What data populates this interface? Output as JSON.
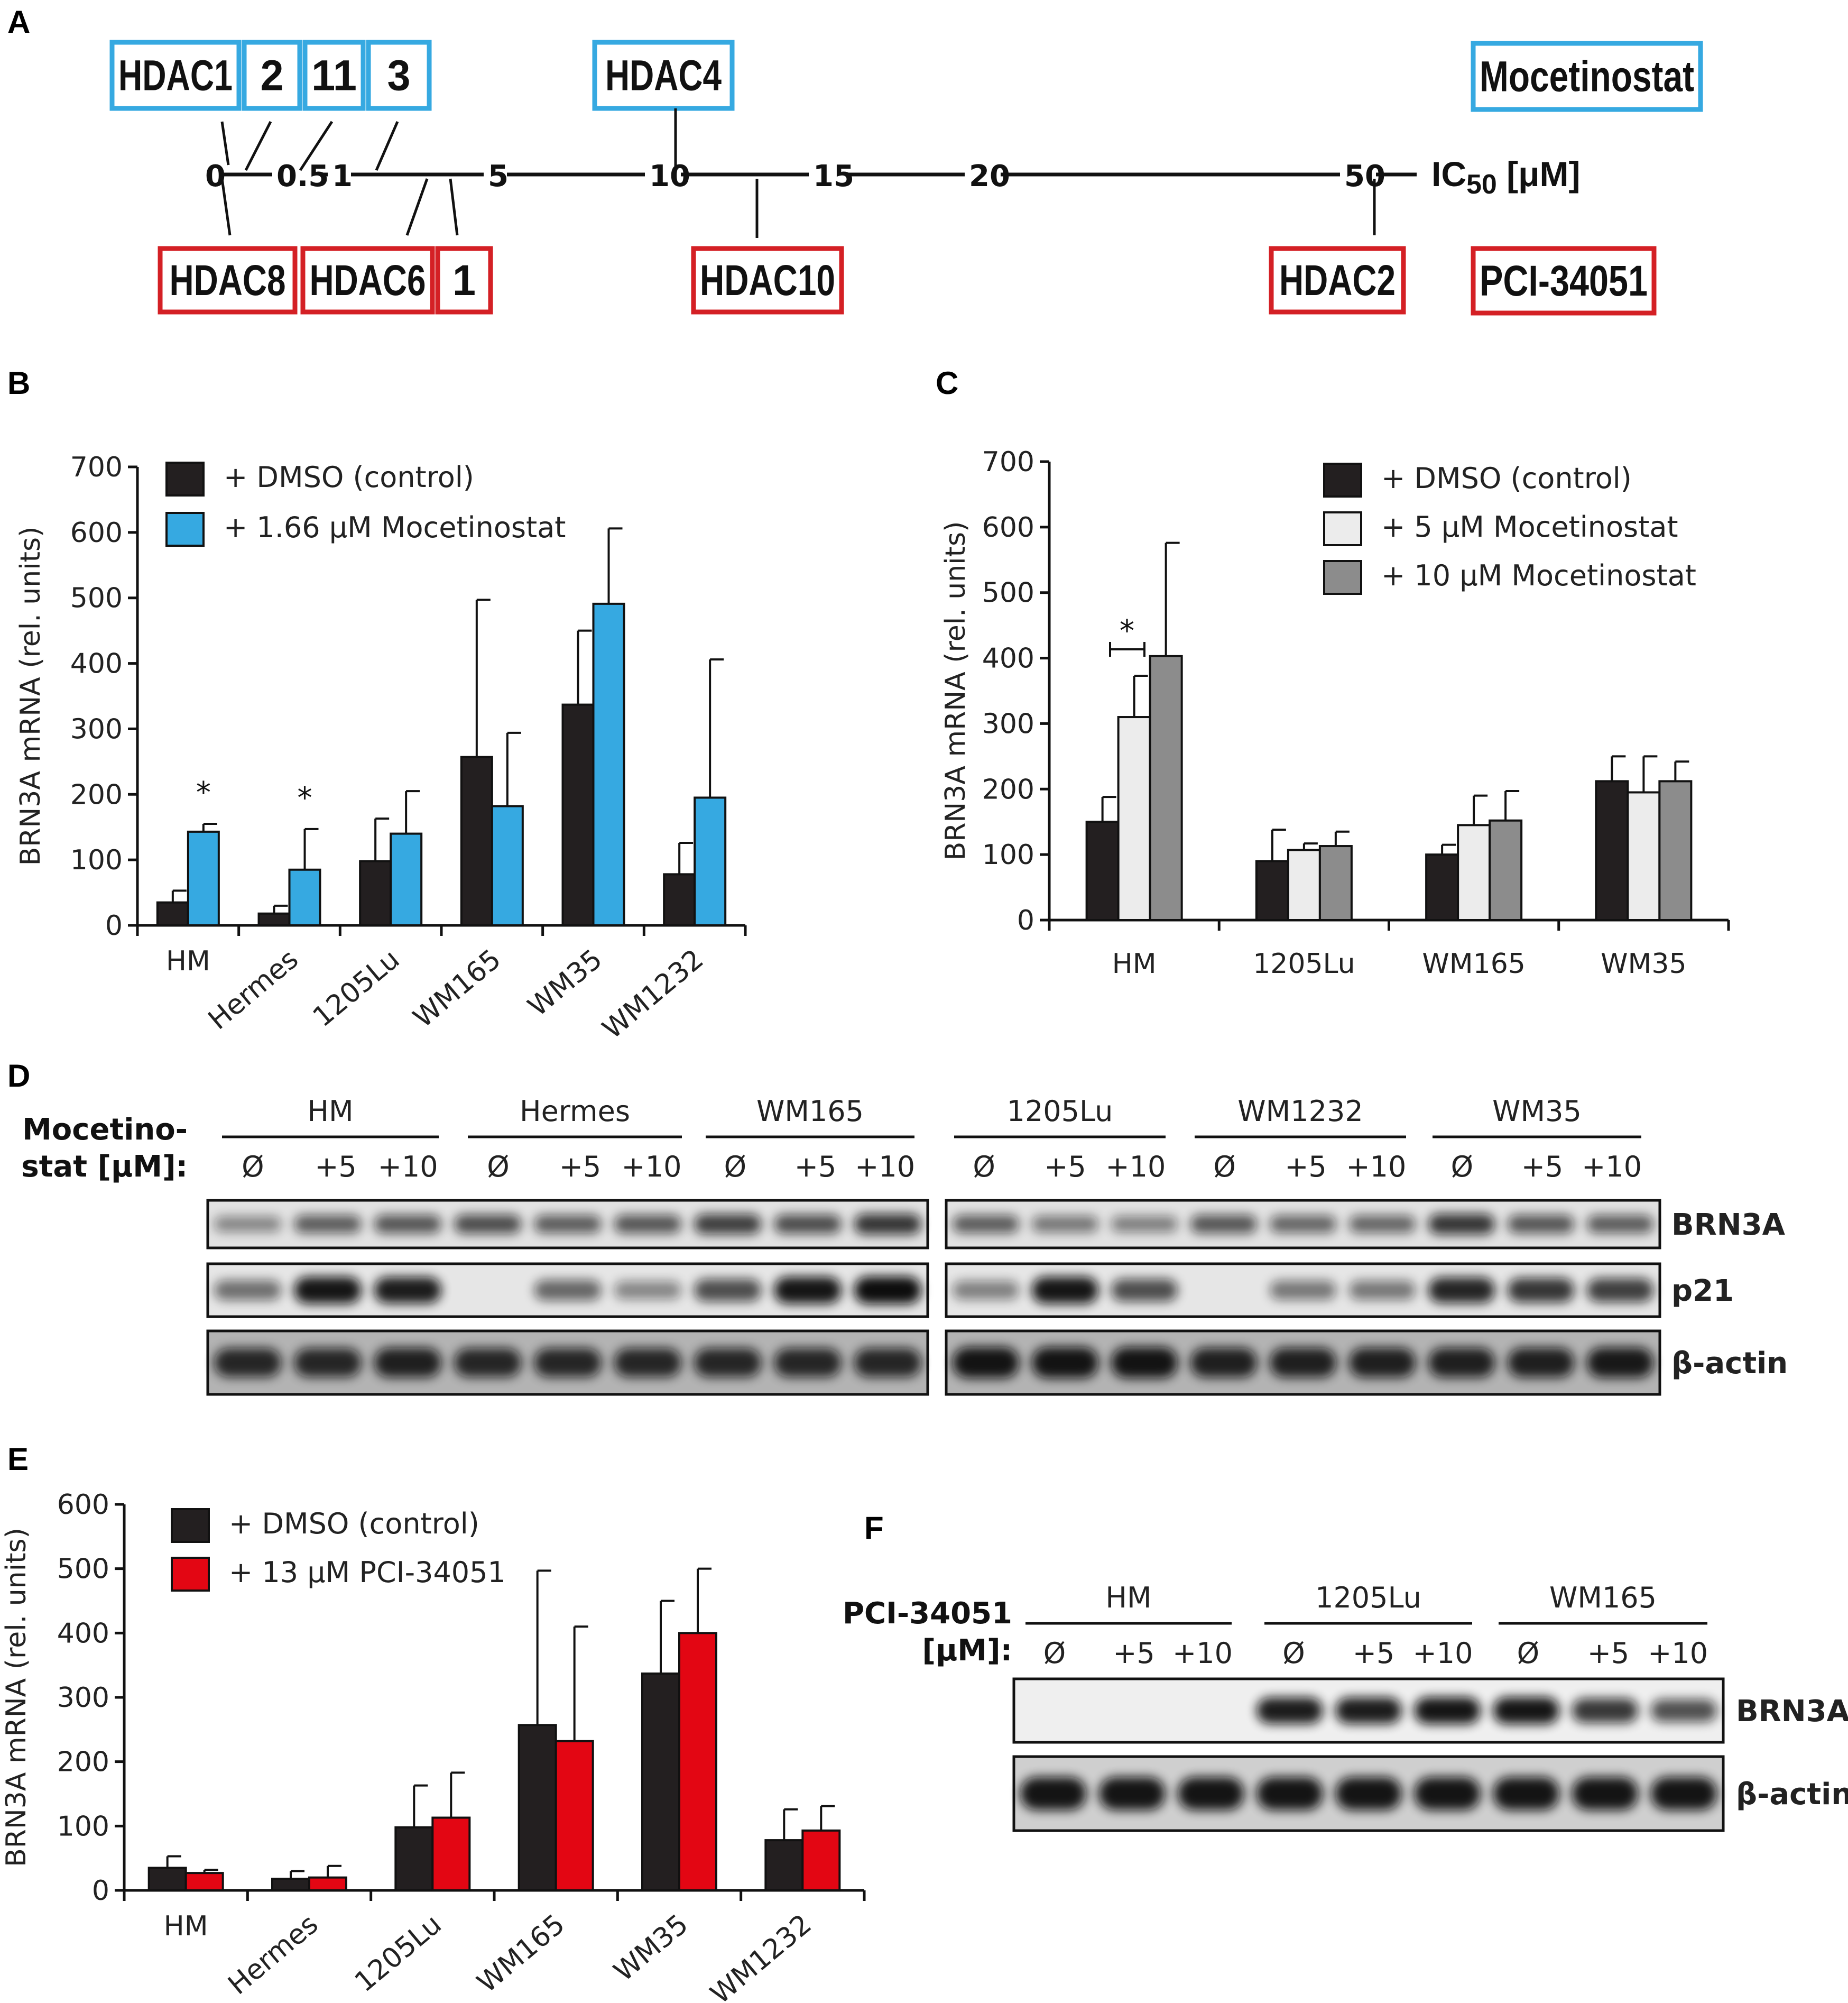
{
  "panels": {
    "a": "A",
    "b": "B",
    "c": "C",
    "d": "D",
    "e": "E",
    "f": "F"
  },
  "colors": {
    "dmso": "#231f20",
    "mocetinostat": "#36a9e1",
    "moc5": "#ececec",
    "moc10": "#8c8c8c",
    "pci": "#e30613",
    "box_blue": "#36a9e1",
    "box_red": "#d42025"
  },
  "ic50": {
    "axis_label": "IC",
    "axis_sub": "50",
    "axis_unit": " [μM]",
    "ticks": [
      "0",
      "0.5",
      "1",
      "5",
      "10",
      "15",
      "20",
      "50"
    ],
    "top_boxes": [
      "HDAC1",
      "2",
      "11",
      "3",
      "HDAC4"
    ],
    "bottom_boxes": [
      "HDAC8",
      "HDAC6",
      "1",
      "HDAC10",
      "HDAC2"
    ],
    "legend_top": "Mocetinostat",
    "legend_bottom": "PCI-34051"
  },
  "chart_data": [
    {
      "panel": "B",
      "type": "bar",
      "ylabel": "BRN3A mRNA (rel. units)",
      "ylim": [
        0,
        700
      ],
      "yticks": [
        0,
        100,
        200,
        300,
        400,
        500,
        600,
        700
      ],
      "categories": [
        "HM",
        "Hermes",
        "1205Lu",
        "WM165",
        "WM35",
        "WM1232"
      ],
      "series": [
        {
          "name": "+ DMSO (control)",
          "values": [
            35,
            18,
            98,
            257,
            337,
            78
          ],
          "errors": [
            18,
            12,
            65,
            240,
            113,
            48
          ]
        },
        {
          "name": "+ 1.66 μM Mocetinostat",
          "values": [
            143,
            85,
            140,
            182,
            491,
            195
          ],
          "errors": [
            12,
            62,
            65,
            112,
            115,
            211
          ]
        }
      ],
      "significance": [
        "*",
        "*",
        "",
        "",
        "",
        ""
      ],
      "legend": "top-left"
    },
    {
      "panel": "C",
      "type": "bar",
      "ylabel": "BRN3A mRNA (rel. units)",
      "ylim": [
        0,
        700
      ],
      "yticks": [
        0,
        100,
        200,
        300,
        400,
        500,
        600,
        700
      ],
      "categories": [
        "HM",
        "1205Lu",
        "WM165",
        "WM35"
      ],
      "series": [
        {
          "name": "+ DMSO (control)",
          "values": [
            150,
            90,
            100,
            212
          ],
          "errors": [
            38,
            48,
            15,
            38
          ]
        },
        {
          "name": "+ 5 μM Mocetinostat",
          "values": [
            310,
            107,
            145,
            195
          ],
          "errors": [
            63,
            10,
            45,
            55
          ]
        },
        {
          "name": "+ 10 μM Mocetinostat",
          "values": [
            403,
            113,
            152,
            212
          ],
          "errors": [
            173,
            22,
            45,
            30
          ]
        }
      ],
      "significance_bracket": "*",
      "legend": "top-right"
    },
    {
      "panel": "E",
      "type": "bar",
      "ylabel": "BRN3A mRNA (rel. units)",
      "ylim": [
        0,
        600
      ],
      "yticks": [
        0,
        100,
        200,
        300,
        400,
        500,
        600
      ],
      "categories": [
        "HM",
        "Hermes",
        "1205Lu",
        "WM165",
        "WM35",
        "WM1232"
      ],
      "series": [
        {
          "name": "+ DMSO (control)",
          "values": [
            35,
            18,
            98,
            257,
            337,
            78
          ],
          "errors": [
            18,
            12,
            65,
            240,
            113,
            48
          ]
        },
        {
          "name": "+ 13 μM PCI-34051",
          "values": [
            27,
            20,
            113,
            232,
            400,
            93
          ],
          "errors": [
            5,
            18,
            70,
            178,
            100,
            38
          ]
        }
      ],
      "legend": "top-left"
    }
  ],
  "blot_d": {
    "label_line1": "Mocetino-",
    "label_line2": "stat [μM]:",
    "groups": [
      "HM",
      "Hermes",
      "WM165",
      "1205Lu",
      "WM1232",
      "WM35"
    ],
    "lanes": [
      "Ø",
      "+5",
      "+10"
    ],
    "rows": [
      "BRN3A",
      "p21",
      "β-actin"
    ]
  },
  "blot_f": {
    "label_line1": "PCI-34051",
    "label_line2": "[μM]:",
    "groups": [
      "HM",
      "1205Lu",
      "WM165"
    ],
    "lanes": [
      "Ø",
      "+5",
      "+10"
    ],
    "rows": [
      "BRN3A",
      "β-actin"
    ]
  }
}
